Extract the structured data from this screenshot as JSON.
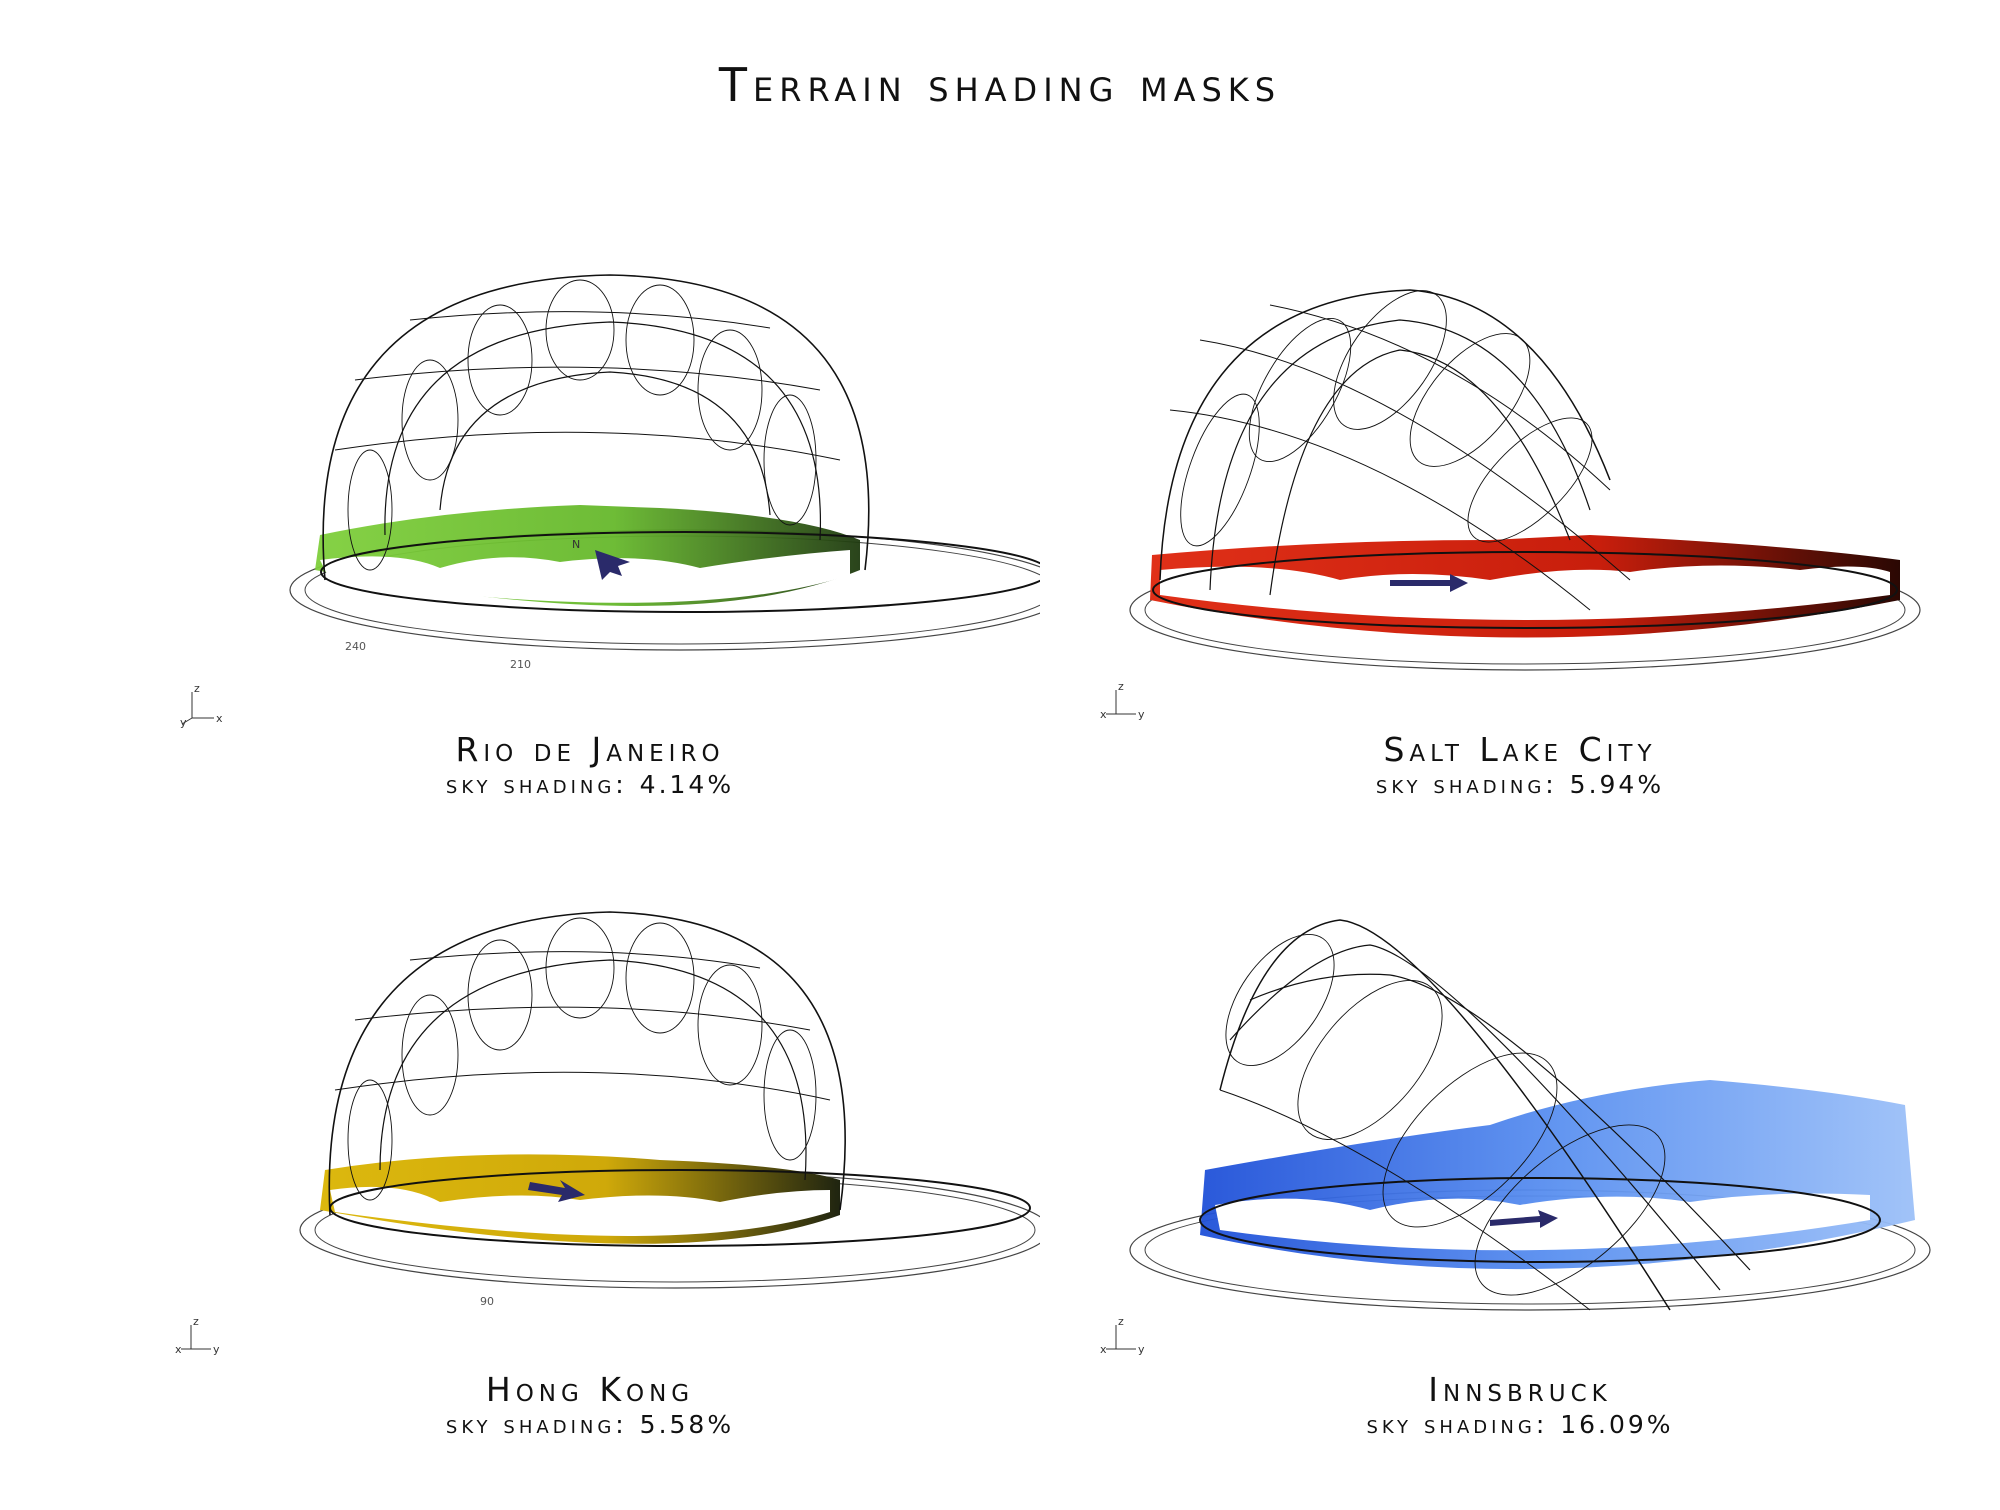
{
  "title": "Terrain shading masks",
  "shading_label": "sky shading:",
  "panels": [
    {
      "city": "Rio de Janeiro",
      "shading": "4.14%",
      "color": "#6dbf2f",
      "dark": "#1f3a10",
      "tilt": "upright",
      "ticks": [
        "240",
        "210"
      ],
      "axes": {
        "up": "z",
        "left": "y",
        "right": "x"
      }
    },
    {
      "city": "Salt Lake City",
      "shading": "5.94%",
      "color": "#d42a10",
      "dark": "#3a0c05",
      "tilt": "tilted",
      "ticks": [],
      "axes": {
        "up": "z",
        "left": "x",
        "right": "y"
      }
    },
    {
      "city": "Hong Kong",
      "shading": "5.58%",
      "color": "#d8b10a",
      "dark": "#2a2a10",
      "tilt": "upright",
      "ticks": [
        "90"
      ],
      "axes": {
        "up": "z",
        "left": "x",
        "right": "y"
      }
    },
    {
      "city": "Innsbruck",
      "shading": "16.09%",
      "color": "#3f7be8",
      "dark": "#1f4fd0",
      "tilt": "tilted-strong",
      "ticks": [],
      "axes": {
        "up": "z",
        "left": "x",
        "right": "y"
      }
    }
  ]
}
